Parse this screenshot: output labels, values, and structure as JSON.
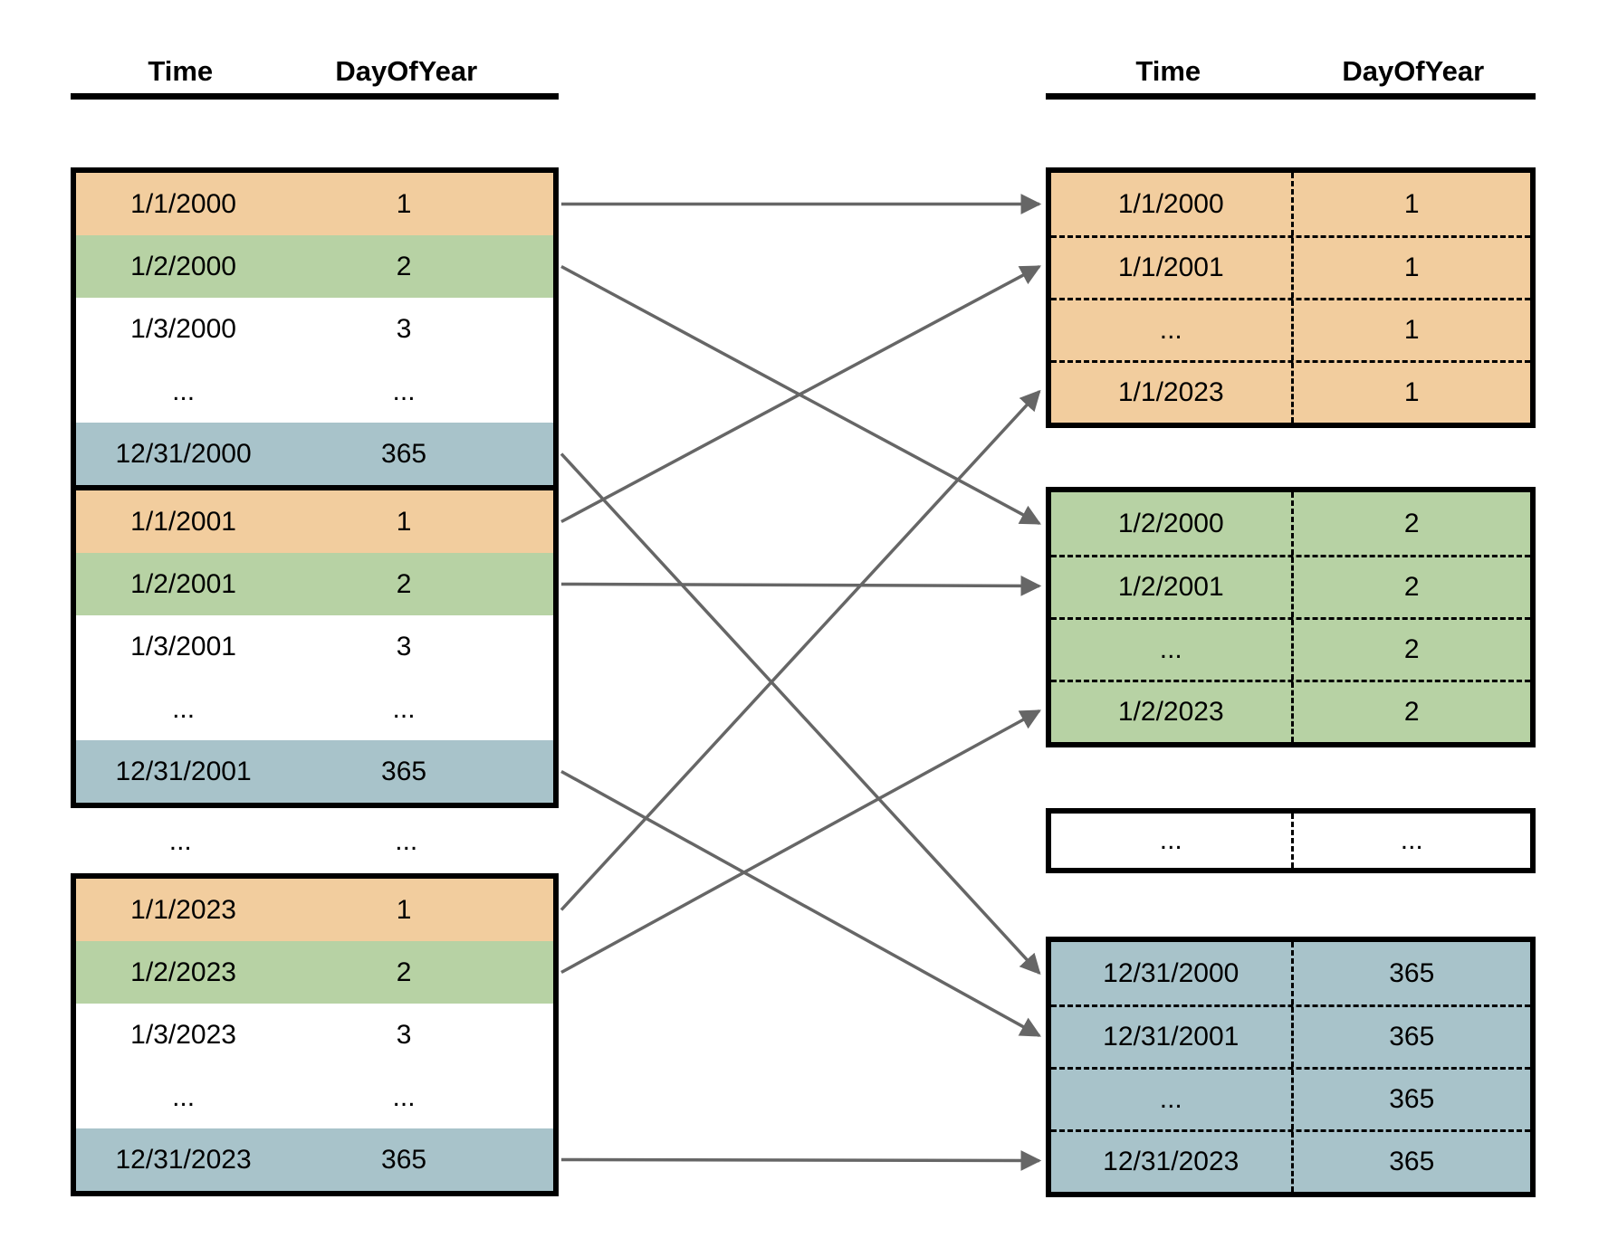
{
  "colors": {
    "orange": "#F2CD9E",
    "green": "#B7D2A4",
    "blue": "#A8C3CA",
    "white": "#FFFFFF",
    "border": "#000000",
    "arrow": "#666666"
  },
  "left": {
    "header": {
      "col1": "Time",
      "col2": "DayOfYear"
    },
    "blocks": [
      {
        "rows": [
          {
            "time": "1/1/2000",
            "day": "1",
            "color": "orange"
          },
          {
            "time": "1/2/2000",
            "day": "2",
            "color": "green"
          },
          {
            "time": "1/3/2000",
            "day": "3",
            "color": "white"
          },
          {
            "time": "...",
            "day": "...",
            "color": "white"
          },
          {
            "time": "12/31/2000",
            "day": "365",
            "color": "blue"
          }
        ]
      },
      {
        "rows": [
          {
            "time": "1/1/2001",
            "day": "1",
            "color": "orange"
          },
          {
            "time": "1/2/2001",
            "day": "2",
            "color": "green"
          },
          {
            "time": "1/3/2001",
            "day": "3",
            "color": "white"
          },
          {
            "time": "...",
            "day": "...",
            "color": "white"
          },
          {
            "time": "12/31/2001",
            "day": "365",
            "color": "blue"
          }
        ]
      },
      {
        "rows": [
          {
            "time": "1/1/2023",
            "day": "1",
            "color": "orange"
          },
          {
            "time": "1/2/2023",
            "day": "2",
            "color": "green"
          },
          {
            "time": "1/3/2023",
            "day": "3",
            "color": "white"
          },
          {
            "time": "...",
            "day": "...",
            "color": "white"
          },
          {
            "time": "12/31/2023",
            "day": "365",
            "color": "blue"
          }
        ]
      }
    ],
    "gap_row": {
      "time": "...",
      "day": "..."
    }
  },
  "right": {
    "header": {
      "col1": "Time",
      "col2": "DayOfYear"
    },
    "groups": [
      {
        "color": "orange",
        "rows": [
          {
            "time": "1/1/2000",
            "day": "1"
          },
          {
            "time": "1/1/2001",
            "day": "1"
          },
          {
            "time": "...",
            "day": "1"
          },
          {
            "time": "1/1/2023",
            "day": "1"
          }
        ]
      },
      {
        "color": "green",
        "rows": [
          {
            "time": "1/2/2000",
            "day": "2"
          },
          {
            "time": "1/2/2001",
            "day": "2"
          },
          {
            "time": "...",
            "day": "2"
          },
          {
            "time": "1/2/2023",
            "day": "2"
          }
        ]
      },
      {
        "color": "white",
        "rows": [
          {
            "time": "...",
            "day": "..."
          }
        ]
      },
      {
        "color": "blue",
        "rows": [
          {
            "time": "12/31/2000",
            "day": "365"
          },
          {
            "time": "12/31/2001",
            "day": "365"
          },
          {
            "time": "...",
            "day": "365"
          },
          {
            "time": "12/31/2023",
            "day": "365"
          }
        ]
      }
    ]
  },
  "arrows": [
    {
      "from": [
        0,
        0
      ],
      "to": [
        0,
        0
      ]
    },
    {
      "from": [
        0,
        1
      ],
      "to": [
        1,
        0
      ]
    },
    {
      "from": [
        0,
        4
      ],
      "to": [
        3,
        0
      ]
    },
    {
      "from": [
        1,
        0
      ],
      "to": [
        0,
        1
      ]
    },
    {
      "from": [
        1,
        1
      ],
      "to": [
        1,
        1
      ]
    },
    {
      "from": [
        1,
        4
      ],
      "to": [
        3,
        1
      ]
    },
    {
      "from": [
        2,
        0
      ],
      "to": [
        0,
        3
      ]
    },
    {
      "from": [
        2,
        1
      ],
      "to": [
        1,
        3
      ]
    },
    {
      "from": [
        2,
        4
      ],
      "to": [
        3,
        3
      ]
    }
  ]
}
